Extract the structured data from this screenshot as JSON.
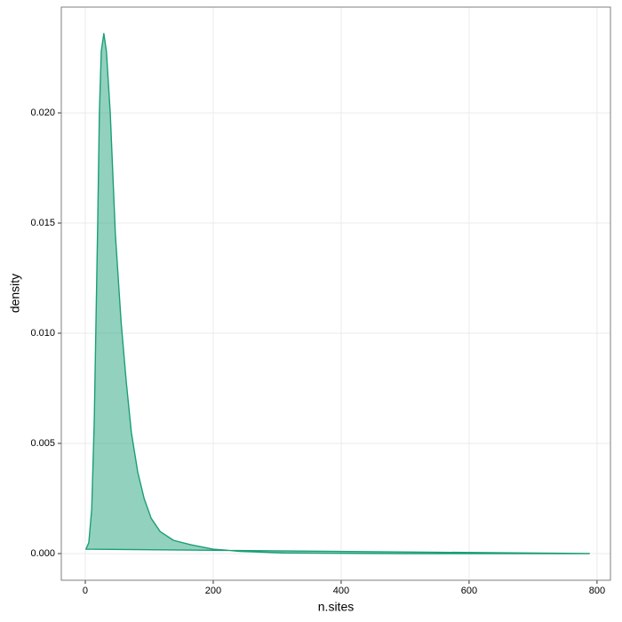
{
  "chart_data": {
    "type": "density",
    "x_label": "n.sites",
    "y_label": "density",
    "color": "#1b9e77",
    "grid": true,
    "x": [
      1,
      5.5,
      10,
      14,
      17,
      19.4,
      22,
      25,
      29,
      33,
      39,
      47,
      56,
      64,
      72,
      82,
      92,
      103,
      117,
      138,
      165,
      200,
      242,
      311,
      422,
      500,
      600,
      788
    ],
    "y": [
      0.0002,
      0.0005,
      0.002,
      0.006,
      0.011,
      0.015,
      0.02,
      0.0228,
      0.0236,
      0.0228,
      0.02,
      0.0145,
      0.0105,
      0.0078,
      0.0055,
      0.0037,
      0.0025,
      0.0016,
      0.001,
      0.0006,
      0.0004,
      0.0002,
      0.0001,
      3e-05,
      1e-05,
      0,
      0,
      0
    ],
    "xlim": [
      -37.5,
      821
    ],
    "ylim": [
      -0.00121,
      0.0248
    ],
    "xticks": [
      0,
      200,
      400,
      600,
      800
    ],
    "yticks": [
      {
        "value": 0,
        "label": "0.000"
      },
      {
        "value": 0.005,
        "label": "0.005"
      },
      {
        "value": 0.01,
        "label": "0.010"
      },
      {
        "value": 0.015,
        "label": "0.015"
      },
      {
        "value": 0.02,
        "label": "0.020"
      }
    ]
  }
}
